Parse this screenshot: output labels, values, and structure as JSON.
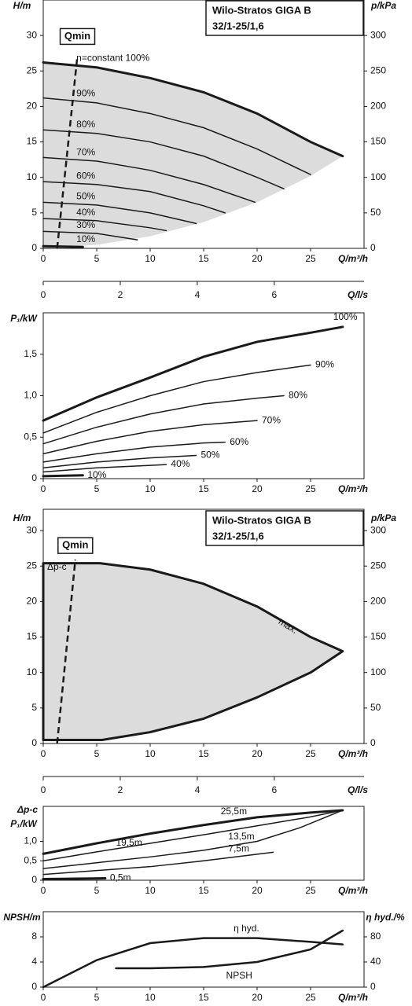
{
  "chart_data": [
    {
      "type": "line",
      "title": "Wilo-Stratos GIGA B",
      "subtitle": "32/1-25/1,6",
      "ylabel": "H/m",
      "y2label": "p/kPa",
      "xlabel": "Q/m³/h",
      "x2label": "Q/l/s",
      "xlim": [
        0,
        30
      ],
      "xticks": [
        0,
        5,
        10,
        15,
        20,
        25
      ],
      "ylim": [
        0,
        35
      ],
      "yticks": [
        0,
        5,
        10,
        15,
        20,
        25,
        30
      ],
      "y2lim": [
        0,
        350
      ],
      "y2ticks": [
        0,
        50,
        100,
        150,
        200,
        250,
        300
      ],
      "x2lim": [
        0,
        8.33
      ],
      "x2ticks": [
        0,
        2,
        4,
        6
      ],
      "qmin": {
        "label": "Qmin",
        "x": [
          1.3,
          3.2
        ],
        "values": [
          0,
          27.2
        ]
      },
      "area": {
        "color": "#dcdcdc",
        "x": [
          0,
          5,
          10,
          15,
          20,
          25,
          28,
          25,
          20,
          15,
          10,
          5,
          0
        ],
        "values": [
          26.2,
          25.5,
          24,
          22,
          19,
          15,
          13,
          10.2,
          6.5,
          3.7,
          1.7,
          0.5,
          0
        ]
      },
      "series": [
        {
          "name": "n=constant 100%",
          "color": "#1a1a1a",
          "line_width": 3,
          "x": [
            0,
            5,
            10,
            15,
            20,
            25,
            28
          ],
          "values": [
            26.2,
            25.5,
            24,
            22,
            19,
            15,
            13
          ]
        },
        {
          "name": "90%",
          "color": "#1a1a1a",
          "line_width": 1.5,
          "x": [
            0,
            5,
            10,
            15,
            20,
            25
          ],
          "values": [
            21.2,
            20.5,
            19,
            17,
            14,
            10.4
          ]
        },
        {
          "name": "80%",
          "color": "#1a1a1a",
          "line_width": 1.5,
          "x": [
            0,
            5,
            10,
            15,
            20,
            22.5
          ],
          "values": [
            16.7,
            16.2,
            15,
            13,
            10,
            8.4
          ]
        },
        {
          "name": "70%",
          "color": "#1a1a1a",
          "line_width": 1.5,
          "x": [
            0,
            5,
            10,
            15,
            19.8
          ],
          "values": [
            12.8,
            12.3,
            11,
            9,
            6.5
          ]
        },
        {
          "name": "60%",
          "color": "#1a1a1a",
          "line_width": 1.5,
          "x": [
            0,
            5,
            10,
            15,
            17
          ],
          "values": [
            9.4,
            9,
            8,
            6,
            5
          ]
        },
        {
          "name": "50%",
          "color": "#1a1a1a",
          "line_width": 1.5,
          "x": [
            0,
            5,
            10,
            14.3
          ],
          "values": [
            6.5,
            6.1,
            5,
            3.5
          ]
        },
        {
          "name": "40%",
          "color": "#1a1a1a",
          "line_width": 1.5,
          "x": [
            0,
            5,
            10,
            11.5
          ],
          "values": [
            4.2,
            3.9,
            2.9,
            2.5
          ]
        },
        {
          "name": "30%",
          "color": "#1a1a1a",
          "line_width": 1.5,
          "x": [
            0,
            5,
            8.8
          ],
          "values": [
            2.4,
            2.1,
            1.2
          ]
        },
        {
          "name": "10%",
          "color": "#1a1a1a",
          "line_width": 3,
          "x": [
            0,
            3.7
          ],
          "values": [
            0.3,
            0.2
          ]
        }
      ]
    },
    {
      "type": "line",
      "ylabel": "P₁/kW",
      "xlabel": "Q/m³/h",
      "xlim": [
        0,
        30
      ],
      "xticks": [
        0,
        5,
        10,
        15,
        20,
        25
      ],
      "ylim": [
        0,
        2
      ],
      "yticks": [
        0,
        {
          "value": 0.5,
          "label": "0,5"
        },
        {
          "value": 1,
          "label": "1,0"
        },
        {
          "value": 1.5,
          "label": "1,5"
        }
      ],
      "series": [
        {
          "name": "100%",
          "color": "#1a1a1a",
          "line_width": 3,
          "x": [
            0,
            5,
            10,
            15,
            20,
            25,
            28
          ],
          "values": [
            0.7,
            0.98,
            1.22,
            1.47,
            1.65,
            1.76,
            1.83
          ]
        },
        {
          "name": "90%",
          "color": "#1a1a1a",
          "line_width": 1.5,
          "x": [
            0,
            5,
            10,
            15,
            20,
            25
          ],
          "values": [
            0.55,
            0.8,
            1.0,
            1.17,
            1.28,
            1.37
          ]
        },
        {
          "name": "80%",
          "color": "#1a1a1a",
          "line_width": 1.5,
          "x": [
            0,
            5,
            10,
            15,
            20,
            22.5
          ],
          "values": [
            0.42,
            0.62,
            0.78,
            0.9,
            0.97,
            1.0
          ]
        },
        {
          "name": "70%",
          "color": "#1a1a1a",
          "line_width": 1.5,
          "x": [
            0,
            5,
            10,
            15,
            20
          ],
          "values": [
            0.3,
            0.45,
            0.57,
            0.65,
            0.7
          ]
        },
        {
          "name": "60%",
          "color": "#1a1a1a",
          "line_width": 1.5,
          "x": [
            0,
            5,
            10,
            15,
            17
          ],
          "values": [
            0.2,
            0.3,
            0.38,
            0.43,
            0.44
          ]
        },
        {
          "name": "50%",
          "color": "#1a1a1a",
          "line_width": 1.5,
          "x": [
            0,
            5,
            10,
            14.3
          ],
          "values": [
            0.13,
            0.2,
            0.25,
            0.28
          ]
        },
        {
          "name": "40%",
          "color": "#1a1a1a",
          "line_width": 1.5,
          "x": [
            0,
            5,
            10,
            11.5
          ],
          "values": [
            0.08,
            0.13,
            0.16,
            0.17
          ]
        },
        {
          "name": "10%",
          "color": "#1a1a1a",
          "line_width": 3,
          "x": [
            0,
            3.7
          ],
          "values": [
            0.03,
            0.04
          ]
        }
      ]
    },
    {
      "type": "line",
      "title": "Wilo-Stratos GIGA B",
      "subtitle": "32/1-25/1,6",
      "ylabel": "H/m",
      "y2label": "p/kPa",
      "xlabel": "Q/m³/h",
      "x2label": "Q/l/s",
      "xlim": [
        0,
        30
      ],
      "xticks": [
        0,
        5,
        10,
        15,
        20,
        25
      ],
      "ylim": [
        0,
        33
      ],
      "yticks": [
        0,
        5,
        10,
        15,
        20,
        25,
        30
      ],
      "y2lim": [
        0,
        330
      ],
      "y2ticks": [
        0,
        50,
        100,
        150,
        200,
        250,
        300
      ],
      "x2lim": [
        0,
        8.33
      ],
      "x2ticks": [
        0,
        2,
        4,
        6
      ],
      "qmin": {
        "label": "Qmin",
        "x": [
          1.3,
          3.0
        ],
        "values": [
          0,
          25.9
        ]
      },
      "area": {
        "color": "#dcdcdc",
        "stroke": "#1a1a1a",
        "x": [
          0,
          5.3,
          10,
          15,
          20,
          25,
          28,
          25,
          20,
          15,
          10,
          5.5,
          0
        ],
        "values": [
          25.4,
          25.4,
          24.5,
          22.5,
          19.3,
          15,
          13,
          10,
          6.5,
          3.5,
          1.6,
          0.5,
          0.5
        ]
      },
      "annotations": [
        "Δp-c",
        "max."
      ],
      "series": []
    },
    {
      "type": "line",
      "ylabel": "Δp-c",
      "ylabel2": "P₁/kW",
      "xlabel": "Q/m³/h",
      "xlim": [
        0,
        30
      ],
      "xticks": [
        0,
        5,
        10,
        15,
        20,
        25
      ],
      "ylim": [
        0,
        1.9
      ],
      "yticks": [
        0,
        {
          "value": 0.5,
          "label": "0,5"
        },
        {
          "value": 1,
          "label": "1,0"
        }
      ],
      "series": [
        {
          "name": "25,5m",
          "color": "#1a1a1a",
          "line_width": 3,
          "x": [
            0,
            5,
            10,
            15,
            20,
            25,
            28
          ],
          "values": [
            0.68,
            0.95,
            1.2,
            1.42,
            1.62,
            1.74,
            1.8
          ]
        },
        {
          "name": "19,5m",
          "color": "#1a1a1a",
          "line_width": 1.5,
          "x": [
            0,
            5,
            10,
            15,
            20,
            25,
            28
          ],
          "values": [
            0.5,
            0.73,
            0.95,
            1.17,
            1.4,
            1.63,
            1.8
          ]
        },
        {
          "name": "13,5m",
          "color": "#1a1a1a",
          "line_width": 1.5,
          "x": [
            0,
            5,
            10,
            15,
            20,
            24,
            28
          ],
          "values": [
            0.3,
            0.45,
            0.6,
            0.77,
            1.0,
            1.35,
            1.8
          ]
        },
        {
          "name": "7,5m",
          "color": "#1a1a1a",
          "line_width": 1.5,
          "x": [
            0,
            5,
            10,
            15,
            21.5
          ],
          "values": [
            0.15,
            0.25,
            0.35,
            0.5,
            0.72
          ]
        },
        {
          "name": "0,5m",
          "color": "#1a1a1a",
          "line_width": 3,
          "x": [
            0,
            5.8
          ],
          "values": [
            0.03,
            0.05
          ]
        }
      ]
    },
    {
      "type": "line",
      "ylabel": "NPSH/m",
      "y2label": "η hyd./%",
      "xlabel": "Q/m³/h",
      "xlim": [
        0,
        30
      ],
      "xticks": [
        0,
        5,
        10,
        15,
        20,
        25
      ],
      "ylim": [
        0,
        12
      ],
      "yticks": [
        0,
        4,
        8
      ],
      "y2lim": [
        0,
        120
      ],
      "y2ticks": [
        0,
        40,
        80
      ],
      "series": [
        {
          "name": "η hyd.",
          "color": "#1a1a1a",
          "line_width": 2.5,
          "axis": "y2",
          "x": [
            0,
            5,
            10,
            15,
            20,
            25,
            28
          ],
          "values": [
            0,
            43,
            70,
            78,
            78,
            72,
            68
          ]
        },
        {
          "name": "NPSH",
          "color": "#1a1a1a",
          "line_width": 2.5,
          "x": [
            6.8,
            10,
            15,
            20,
            25,
            28
          ],
          "values": [
            3,
            3,
            3.2,
            4,
            6,
            9
          ]
        }
      ]
    }
  ]
}
